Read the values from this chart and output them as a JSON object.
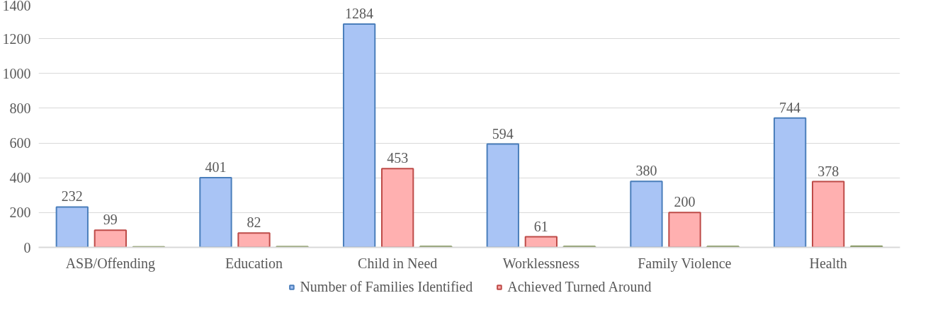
{
  "chart_data": {
    "type": "bar",
    "categories": [
      "ASB/Offending",
      "Education",
      "Child in Need",
      "Worklessness",
      "Family Violence",
      "Health"
    ],
    "series": [
      {
        "name": "Number of Families Identified",
        "color": "#a9c4f5",
        "values": [
          232,
          401,
          1284,
          594,
          380,
          744
        ],
        "value_labels": [
          "232",
          "401",
          "1284",
          "594",
          "380",
          "744"
        ]
      },
      {
        "name": "Achieved Turned Around",
        "color": "#ffb0b0",
        "values": [
          99,
          82,
          453,
          61,
          200,
          378
        ],
        "value_labels": [
          "99",
          "82",
          "453",
          "61",
          "200",
          "378"
        ]
      },
      {
        "color": "#9bbb59",
        "values": [
          3,
          4,
          5,
          5,
          5,
          6
        ]
      }
    ],
    "ylim": [
      0,
      1400
    ],
    "yticks": [
      0,
      200,
      400,
      600,
      800,
      1000,
      1200,
      1400
    ],
    "grid": "y",
    "legend": "bottom"
  }
}
